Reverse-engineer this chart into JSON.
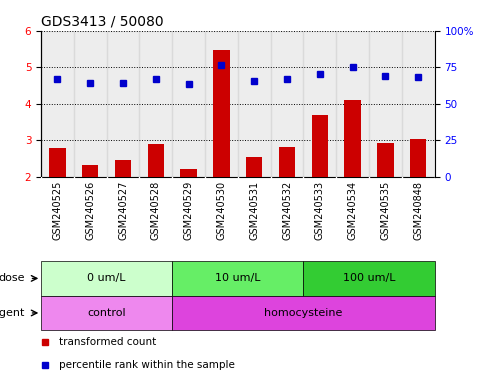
{
  "title": "GDS3413 / 50080",
  "samples": [
    "GSM240525",
    "GSM240526",
    "GSM240527",
    "GSM240528",
    "GSM240529",
    "GSM240530",
    "GSM240531",
    "GSM240532",
    "GSM240533",
    "GSM240534",
    "GSM240535",
    "GSM240848"
  ],
  "bar_values": [
    2.78,
    2.32,
    2.45,
    2.9,
    2.22,
    5.48,
    2.55,
    2.82,
    3.68,
    4.1,
    2.92,
    3.02
  ],
  "dot_values": [
    4.68,
    4.57,
    4.58,
    4.68,
    4.55,
    5.07,
    4.63,
    4.68,
    4.82,
    5.0,
    4.75,
    4.72
  ],
  "bar_color": "#cc0000",
  "dot_color": "#0000cc",
  "ylim_left": [
    2,
    6
  ],
  "ylim_right": [
    0,
    100
  ],
  "yticks_left": [
    2,
    3,
    4,
    5,
    6
  ],
  "yticks_right": [
    0,
    25,
    50,
    75,
    100
  ],
  "yticklabels_right": [
    "0",
    "25",
    "50",
    "75",
    "100%"
  ],
  "dose_groups": [
    {
      "label": "0 um/L",
      "start": 0,
      "end": 4
    },
    {
      "label": "10 um/L",
      "start": 4,
      "end": 8
    },
    {
      "label": "100 um/L",
      "start": 8,
      "end": 12
    }
  ],
  "dose_colors": [
    "#ccffcc",
    "#66ee66",
    "#33cc33"
  ],
  "agent_groups": [
    {
      "label": "control",
      "start": 0,
      "end": 4
    },
    {
      "label": "homocysteine",
      "start": 4,
      "end": 12
    }
  ],
  "agent_colors": [
    "#ee88ee",
    "#dd44dd"
  ],
  "legend_items": [
    {
      "label": "transformed count",
      "color": "#cc0000"
    },
    {
      "label": "percentile rank within the sample",
      "color": "#0000cc"
    }
  ],
  "dose_label": "dose",
  "agent_label": "agent",
  "bar_width": 0.5,
  "background_color": "#ffffff",
  "sample_bg_color": "#cccccc",
  "title_fontsize": 10,
  "tick_fontsize": 7.5
}
